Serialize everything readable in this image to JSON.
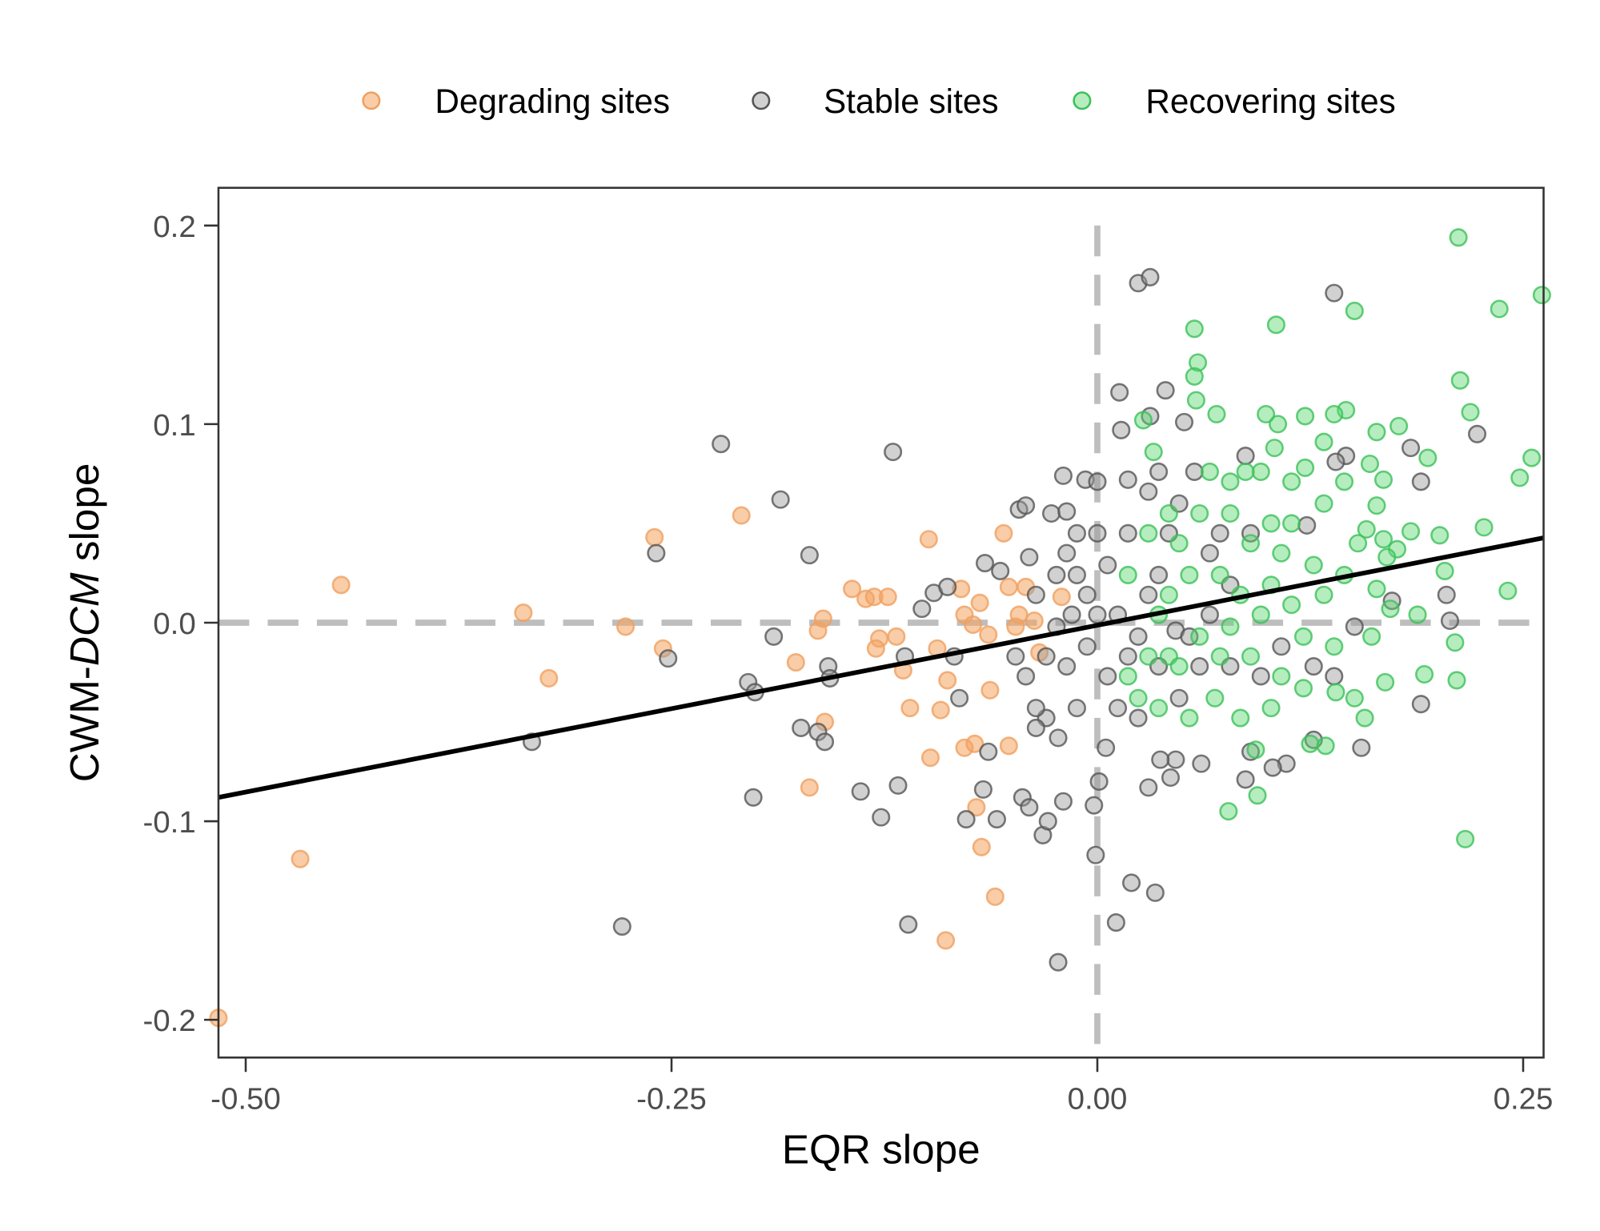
{
  "chart_data": {
    "type": "scatter",
    "xlabel": "EQR slope",
    "ylabel": {
      "prefix": "CWM-",
      "italic": "DCM",
      "suffix": " slope"
    },
    "xlim": [
      -0.516,
      0.262
    ],
    "ylim": [
      -0.219,
      0.219
    ],
    "xticks": [
      -0.5,
      -0.25,
      0,
      0.25
    ],
    "xtick_labels": [
      "-0.50",
      "-0.25",
      "0.00",
      "0.25"
    ],
    "yticks": [
      -0.2,
      -0.1,
      0,
      0.1,
      0.2
    ],
    "ytick_labels": [
      "-0.2",
      "-0.1",
      "0.0",
      "0.1",
      "0.2"
    ],
    "grid": false,
    "legend_position": "top",
    "reference_lines": {
      "x": 0,
      "y": 0,
      "style": "dashed",
      "color": "#bebebe"
    },
    "regression_line": {
      "slope": 0.168,
      "intercept": -0.0013,
      "color": "#000000"
    },
    "series": [
      {
        "name": "Degrading sites",
        "fill": "#f4a460",
        "stroke": "#f0a060",
        "points": [
          [
            -0.516,
            -0.199
          ],
          [
            -0.468,
            -0.119
          ],
          [
            -0.444,
            0.019
          ],
          [
            -0.337,
            0.005
          ],
          [
            -0.322,
            -0.028
          ],
          [
            -0.277,
            -0.002
          ],
          [
            -0.26,
            0.043
          ],
          [
            -0.255,
            -0.013
          ],
          [
            -0.209,
            0.054
          ],
          [
            -0.177,
            -0.02
          ],
          [
            -0.169,
            -0.083
          ],
          [
            -0.164,
            -0.004
          ],
          [
            -0.161,
            0.002
          ],
          [
            -0.16,
            -0.05
          ],
          [
            -0.144,
            0.017
          ],
          [
            -0.136,
            0.012
          ],
          [
            -0.131,
            0.013
          ],
          [
            -0.128,
            -0.008
          ],
          [
            -0.13,
            -0.013
          ],
          [
            -0.123,
            0.013
          ],
          [
            -0.118,
            -0.007
          ],
          [
            -0.114,
            -0.024
          ],
          [
            -0.11,
            -0.043
          ],
          [
            -0.099,
            0.042
          ],
          [
            -0.098,
            -0.068
          ],
          [
            -0.094,
            -0.013
          ],
          [
            -0.092,
            -0.044
          ],
          [
            -0.089,
            -0.16
          ],
          [
            -0.088,
            -0.029
          ],
          [
            -0.078,
            0.004
          ],
          [
            -0.078,
            -0.063
          ],
          [
            -0.073,
            -0.001
          ],
          [
            -0.071,
            -0.093
          ],
          [
            -0.069,
            0.01
          ],
          [
            -0.068,
            -0.113
          ],
          [
            -0.064,
            -0.006
          ],
          [
            -0.063,
            -0.034
          ],
          [
            -0.06,
            -0.138
          ],
          [
            -0.055,
            0.045
          ],
          [
            -0.052,
            0.018
          ],
          [
            -0.048,
            -0.002
          ],
          [
            -0.046,
            0.004
          ],
          [
            -0.042,
            0.018
          ],
          [
            -0.037,
            0.001
          ],
          [
            -0.034,
            -0.015
          ],
          [
            -0.021,
            0.013
          ],
          [
            -0.072,
            -0.061
          ],
          [
            -0.052,
            -0.062
          ],
          [
            -0.08,
            0.017
          ]
        ]
      },
      {
        "name": "Stable sites",
        "fill": "#999999",
        "stroke": "#555555",
        "points": [
          [
            -0.221,
            0.09
          ],
          [
            -0.12,
            0.086
          ],
          [
            -0.186,
            0.062
          ],
          [
            -0.169,
            0.034
          ],
          [
            -0.259,
            0.035
          ],
          [
            -0.252,
            -0.018
          ],
          [
            -0.332,
            -0.06
          ],
          [
            -0.279,
            -0.153
          ],
          [
            -0.202,
            -0.088
          ],
          [
            -0.205,
            -0.03
          ],
          [
            -0.201,
            -0.035
          ],
          [
            -0.19,
            -0.007
          ],
          [
            -0.174,
            -0.053
          ],
          [
            -0.164,
            -0.055
          ],
          [
            -0.16,
            -0.06
          ],
          [
            -0.158,
            -0.022
          ],
          [
            -0.157,
            -0.028
          ],
          [
            -0.139,
            -0.085
          ],
          [
            -0.127,
            -0.098
          ],
          [
            -0.117,
            -0.082
          ],
          [
            -0.113,
            -0.017
          ],
          [
            -0.111,
            -0.152
          ],
          [
            -0.103,
            0.007
          ],
          [
            -0.096,
            0.015
          ],
          [
            -0.088,
            0.018
          ],
          [
            -0.084,
            -0.017
          ],
          [
            -0.081,
            -0.038
          ],
          [
            -0.077,
            -0.099
          ],
          [
            -0.067,
            -0.084
          ],
          [
            -0.064,
            -0.065
          ],
          [
            -0.059,
            -0.099
          ],
          [
            -0.066,
            0.03
          ],
          [
            -0.057,
            0.026
          ],
          [
            -0.046,
            0.057
          ],
          [
            -0.042,
            0.059
          ],
          [
            -0.04,
            0.033
          ],
          [
            -0.044,
            -0.088
          ],
          [
            -0.04,
            -0.093
          ],
          [
            -0.032,
            -0.107
          ],
          [
            -0.029,
            -0.1
          ],
          [
            -0.023,
            -0.171
          ],
          [
            -0.02,
            -0.09
          ],
          [
            -0.023,
            -0.058
          ],
          [
            -0.03,
            -0.048
          ],
          [
            -0.036,
            -0.053
          ],
          [
            -0.027,
            0.055
          ],
          [
            -0.018,
            0.056
          ],
          [
            -0.02,
            0.074
          ],
          [
            -0.007,
            0.072
          ],
          [
            -0.002,
            -0.092
          ],
          [
            -0.001,
            -0.117
          ],
          [
            0.001,
            -0.08
          ],
          [
            0.005,
            -0.063
          ],
          [
            0.011,
            -0.151
          ],
          [
            0.02,
            -0.131
          ],
          [
            0.034,
            -0.136
          ],
          [
            0.024,
            0.171
          ],
          [
            0.031,
            0.174
          ],
          [
            0.013,
            0.116
          ],
          [
            0.04,
            0.117
          ],
          [
            0.031,
            0.104
          ],
          [
            0.014,
            0.097
          ],
          [
            0.051,
            0.101
          ],
          [
            0.139,
            0.166
          ],
          [
            0.087,
            0.084
          ],
          [
            0.123,
            0.049
          ],
          [
            0.184,
            0.088
          ],
          [
            0.19,
            0.071
          ],
          [
            0.146,
            0.084
          ],
          [
            0.14,
            0.081
          ],
          [
            0.207,
            0.001
          ],
          [
            0.205,
            0.014
          ],
          [
            0.223,
            0.095
          ],
          [
            0.173,
            0.011
          ],
          [
            0.19,
            -0.041
          ],
          [
            0.155,
            -0.063
          ],
          [
            0.127,
            -0.059
          ],
          [
            0.111,
            -0.071
          ],
          [
            0.103,
            -0.073
          ],
          [
            0.087,
            -0.079
          ],
          [
            0.09,
            -0.065
          ],
          [
            0.061,
            -0.071
          ],
          [
            0.046,
            -0.069
          ],
          [
            0.043,
            -0.078
          ],
          [
            0.03,
            -0.083
          ],
          [
            0.037,
            -0.069
          ],
          [
            0.046,
            -0.004
          ],
          [
            0.057,
            0.076
          ],
          [
            0.036,
            0.076
          ],
          [
            0.018,
            0.072
          ],
          [
            0.0,
            0.071
          ],
          [
            -0.018,
            0.035
          ],
          [
            -0.012,
            0.024
          ],
          [
            -0.006,
            0.014
          ],
          [
            0.006,
            0.029
          ],
          [
            0.012,
            0.004
          ],
          [
            -0.024,
            -0.002
          ],
          [
            -0.03,
            -0.017
          ],
          [
            -0.018,
            -0.022
          ],
          [
            -0.006,
            -0.012
          ],
          [
            0.006,
            -0.027
          ],
          [
            0.018,
            -0.017
          ],
          [
            0.024,
            -0.007
          ],
          [
            0.03,
            0.014
          ],
          [
            0.036,
            0.024
          ],
          [
            0.018,
            0.045
          ],
          [
            0.0,
            0.045
          ],
          [
            -0.012,
            0.045
          ],
          [
            -0.036,
            0.014
          ],
          [
            -0.042,
            -0.027
          ],
          [
            -0.048,
            -0.017
          ],
          [
            -0.036,
            -0.043
          ],
          [
            -0.012,
            -0.043
          ],
          [
            0.012,
            -0.043
          ],
          [
            0.024,
            -0.048
          ],
          [
            0.048,
            -0.038
          ],
          [
            0.06,
            -0.022
          ],
          [
            0.054,
            -0.007
          ],
          [
            0.066,
            0.004
          ],
          [
            0.078,
            0.019
          ],
          [
            0.072,
            0.045
          ],
          [
            0.09,
            0.045
          ],
          [
            0.066,
            0.035
          ],
          [
            0.042,
            0.045
          ],
          [
            0.048,
            0.06
          ],
          [
            0.03,
            0.066
          ],
          [
            0.108,
            -0.012
          ],
          [
            0.096,
            -0.027
          ],
          [
            0.127,
            -0.022
          ],
          [
            0.139,
            -0.027
          ],
          [
            0.151,
            -0.002
          ],
          [
            0.078,
            -0.022
          ],
          [
            0.036,
            -0.022
          ],
          [
            -0.024,
            0.024
          ],
          [
            0.0,
            0.004
          ],
          [
            -0.015,
            0.004
          ]
        ]
      },
      {
        "name": "Recovering sites",
        "fill": "#5cd672",
        "stroke": "#3cc05a",
        "points": [
          [
            0.212,
            0.194
          ],
          [
            0.261,
            0.165
          ],
          [
            0.236,
            0.158
          ],
          [
            0.151,
            0.157
          ],
          [
            0.105,
            0.15
          ],
          [
            0.057,
            0.148
          ],
          [
            0.059,
            0.131
          ],
          [
            0.057,
            0.124
          ],
          [
            0.058,
            0.112
          ],
          [
            0.07,
            0.105
          ],
          [
            0.213,
            0.122
          ],
          [
            0.219,
            0.106
          ],
          [
            0.255,
            0.083
          ],
          [
            0.248,
            0.073
          ],
          [
            0.227,
            0.048
          ],
          [
            0.241,
            0.016
          ],
          [
            0.216,
            -0.109
          ],
          [
            0.077,
            -0.095
          ],
          [
            0.094,
            -0.087
          ],
          [
            0.093,
            -0.064
          ],
          [
            0.125,
            -0.061
          ],
          [
            0.134,
            -0.062
          ],
          [
            0.157,
            -0.048
          ],
          [
            0.211,
            -0.029
          ],
          [
            0.192,
            -0.026
          ],
          [
            0.21,
            -0.01
          ],
          [
            0.204,
            0.026
          ],
          [
            0.201,
            0.044
          ],
          [
            0.194,
            0.083
          ],
          [
            0.177,
            0.099
          ],
          [
            0.164,
            0.096
          ],
          [
            0.146,
            0.107
          ],
          [
            0.139,
            0.105
          ],
          [
            0.122,
            0.104
          ],
          [
            0.106,
            0.1
          ],
          [
            0.099,
            0.105
          ],
          [
            0.104,
            0.088
          ],
          [
            0.133,
            0.091
          ],
          [
            0.122,
            0.078
          ],
          [
            0.16,
            0.08
          ],
          [
            0.168,
            0.072
          ],
          [
            0.164,
            0.059
          ],
          [
            0.158,
            0.047
          ],
          [
            0.153,
            0.04
          ],
          [
            0.168,
            0.042
          ],
          [
            0.176,
            0.037
          ],
          [
            0.17,
            0.033
          ],
          [
            0.184,
            0.046
          ],
          [
            0.188,
            0.004
          ],
          [
            0.172,
            0.007
          ],
          [
            0.164,
            0.017
          ],
          [
            0.161,
            -0.007
          ],
          [
            0.169,
            -0.03
          ],
          [
            0.151,
            -0.038
          ],
          [
            0.14,
            -0.035
          ],
          [
            0.121,
            -0.033
          ],
          [
            0.102,
            -0.043
          ],
          [
            0.084,
            -0.048
          ],
          [
            0.069,
            -0.038
          ],
          [
            0.054,
            -0.048
          ],
          [
            0.036,
            -0.043
          ],
          [
            0.024,
            -0.038
          ],
          [
            0.018,
            -0.027
          ],
          [
            0.042,
            -0.017
          ],
          [
            0.06,
            -0.007
          ],
          [
            0.078,
            -0.002
          ],
          [
            0.096,
            0.004
          ],
          [
            0.114,
            0.009
          ],
          [
            0.133,
            0.014
          ],
          [
            0.145,
            0.024
          ],
          [
            0.127,
            0.029
          ],
          [
            0.108,
            0.035
          ],
          [
            0.09,
            0.04
          ],
          [
            0.072,
            0.024
          ],
          [
            0.054,
            0.024
          ],
          [
            0.042,
            0.014
          ],
          [
            0.036,
            0.004
          ],
          [
            0.048,
            0.04
          ],
          [
            0.06,
            0.055
          ],
          [
            0.078,
            0.071
          ],
          [
            0.096,
            0.076
          ],
          [
            0.114,
            0.071
          ],
          [
            0.133,
            0.06
          ],
          [
            0.145,
            0.071
          ],
          [
            0.114,
            0.05
          ],
          [
            0.102,
            0.05
          ],
          [
            0.078,
            0.055
          ],
          [
            0.027,
            0.102
          ],
          [
            0.033,
            0.086
          ],
          [
            0.042,
            0.055
          ],
          [
            0.03,
            0.045
          ],
          [
            0.018,
            0.024
          ],
          [
            0.03,
            -0.017
          ],
          [
            0.048,
            -0.022
          ],
          [
            0.072,
            -0.017
          ],
          [
            0.09,
            -0.017
          ],
          [
            0.108,
            -0.027
          ],
          [
            0.121,
            -0.007
          ],
          [
            0.139,
            -0.012
          ],
          [
            0.084,
            0.014
          ],
          [
            0.102,
            0.019
          ],
          [
            0.066,
            0.076
          ],
          [
            0.087,
            0.076
          ]
        ]
      }
    ]
  }
}
